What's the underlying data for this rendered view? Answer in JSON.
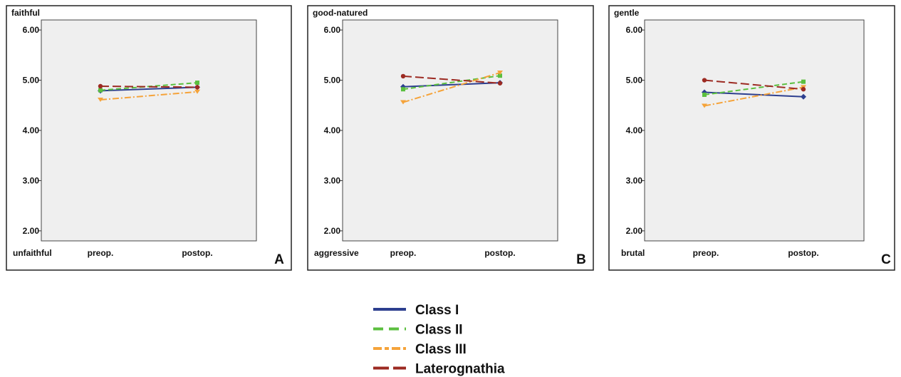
{
  "chart_data": [
    {
      "type": "line",
      "panel_letter": "A",
      "top_label": "faithful",
      "bottom_label": "unfaithful",
      "categories": [
        "preop.",
        "postop."
      ],
      "y_ticks": [
        "2.00",
        "3.00",
        "4.00",
        "5.00",
        "6.00"
      ],
      "ylim": [
        1.8,
        6.2
      ],
      "grid": false,
      "series": [
        {
          "name": "Class I",
          "values": [
            4.79,
            4.86
          ]
        },
        {
          "name": "Class II",
          "values": [
            4.8,
            4.95
          ]
        },
        {
          "name": "Class III",
          "values": [
            4.61,
            4.77
          ]
        },
        {
          "name": "Laterognathia",
          "values": [
            4.88,
            4.86
          ]
        }
      ]
    },
    {
      "type": "line",
      "panel_letter": "B",
      "top_label": "good-natured",
      "bottom_label": "aggressive",
      "categories": [
        "preop.",
        "postop."
      ],
      "y_ticks": [
        "2.00",
        "3.00",
        "4.00",
        "5.00",
        "6.00"
      ],
      "ylim": [
        1.8,
        6.2
      ],
      "grid": false,
      "series": [
        {
          "name": "Class I",
          "values": [
            4.87,
            4.95
          ]
        },
        {
          "name": "Class II",
          "values": [
            4.82,
            5.09
          ]
        },
        {
          "name": "Class III",
          "values": [
            4.56,
            5.15
          ]
        },
        {
          "name": "Laterognathia",
          "values": [
            5.08,
            4.94
          ]
        }
      ]
    },
    {
      "type": "line",
      "panel_letter": "C",
      "top_label": "gentle",
      "bottom_label": "brutal",
      "categories": [
        "preop.",
        "postop."
      ],
      "y_ticks": [
        "2.00",
        "3.00",
        "4.00",
        "5.00",
        "6.00"
      ],
      "ylim": [
        1.8,
        6.2
      ],
      "grid": false,
      "series": [
        {
          "name": "Class I",
          "values": [
            4.76,
            4.67
          ]
        },
        {
          "name": "Class II",
          "values": [
            4.71,
            4.97
          ]
        },
        {
          "name": "Class III",
          "values": [
            4.49,
            4.86
          ]
        },
        {
          "name": "Laterognathia",
          "values": [
            5.0,
            4.82
          ]
        }
      ]
    }
  ],
  "legend": {
    "placement": "bottom-center",
    "items": [
      {
        "label": "Class I",
        "color": "#2d3f8f",
        "dash": "solid"
      },
      {
        "label": "Class II",
        "color": "#5bbf3f",
        "dash": "dashed"
      },
      {
        "label": "Class III",
        "color": "#f5a33a",
        "dash": "dash-dot"
      },
      {
        "label": "Laterognathia",
        "color": "#9c2a22",
        "dash": "long-dash"
      }
    ]
  },
  "colors": {
    "plot_background": "#efefef",
    "frame": "#222222"
  }
}
